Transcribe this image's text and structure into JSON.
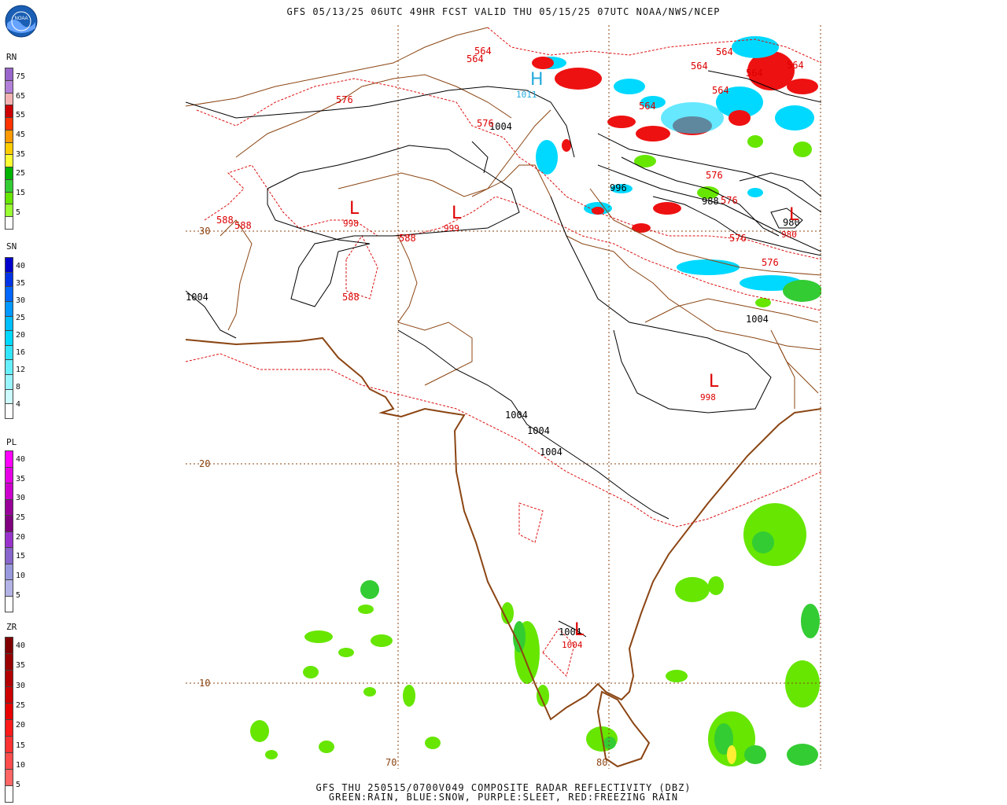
{
  "header": {
    "title": "GFS 05/13/25 06UTC 49HR FCST VALID THU 05/15/25 07UTC NOAA/NWS/NCEP",
    "logo": "NOAA"
  },
  "footer": {
    "line1": "GFS THU 250515/0700V049 COMPOSITE RADAR REFLECTIVITY (DBZ)",
    "line2": "GREEN:RAIN, BLUE:SNOW, PURPLE:SLEET, RED:FREEZING RAIN"
  },
  "legends": {
    "rn": {
      "label": "RN",
      "ticks": [
        "75",
        "65",
        "55",
        "45",
        "35",
        "25",
        "15",
        "5"
      ],
      "colors": [
        "#9966cc",
        "#b380d9",
        "#f4b3b3",
        "#cc0000",
        "#ff3300",
        "#ff9900",
        "#ffcc00",
        "#ffff33",
        "#00b300",
        "#33cc33",
        "#66e600",
        "#99ff33",
        "#ffffff"
      ]
    },
    "sn": {
      "label": "SN",
      "ticks": [
        "40",
        "35",
        "30",
        "25",
        "20",
        "16",
        "12",
        "8",
        "4"
      ],
      "colors": [
        "#0000cc",
        "#0033e6",
        "#0066ff",
        "#0099ff",
        "#00bfff",
        "#00d9ff",
        "#33e6ff",
        "#66f0ff",
        "#99f5ff",
        "#ccfaff",
        "#ffffff"
      ]
    },
    "pl": {
      "label": "PL",
      "ticks": [
        "40",
        "35",
        "30",
        "25",
        "20",
        "15",
        "10",
        "5"
      ],
      "colors": [
        "#ff00ff",
        "#e600e6",
        "#cc00cc",
        "#990099",
        "#800080",
        "#9933cc",
        "#8866cc",
        "#9999dd",
        "#b3b3e6",
        "#ffffff"
      ]
    },
    "zr": {
      "label": "ZR",
      "ticks": [
        "40",
        "35",
        "30",
        "25",
        "20",
        "15",
        "10",
        "5"
      ],
      "colors": [
        "#800000",
        "#990000",
        "#b30000",
        "#cc0000",
        "#e60000",
        "#ff1a1a",
        "#ff3333",
        "#ff4d4d",
        "#ff6666",
        "#ffffff"
      ]
    }
  },
  "map": {
    "lat_labels": [
      "30",
      "20",
      "10"
    ],
    "lon_labels": [
      "70",
      "80"
    ],
    "isobar_labels": [
      "1004",
      "996",
      "988",
      "980",
      "1004",
      "1004",
      "1004",
      "1004",
      "1004",
      "1004"
    ],
    "thickness_labels": [
      "564",
      "564",
      "564",
      "564",
      "564",
      "564",
      "564",
      "564",
      "576",
      "576",
      "576",
      "576",
      "576",
      "576",
      "588",
      "588",
      "588",
      "588"
    ],
    "highs": [
      {
        "letter": "H",
        "value": "1011"
      }
    ],
    "lows": [
      {
        "letter": "L",
        "value": "998"
      },
      {
        "letter": "L",
        "value": "999"
      },
      {
        "letter": "L",
        "value": "998"
      },
      {
        "letter": "L",
        "value": "980"
      },
      {
        "letter": "L",
        "value": "1004"
      }
    ]
  }
}
